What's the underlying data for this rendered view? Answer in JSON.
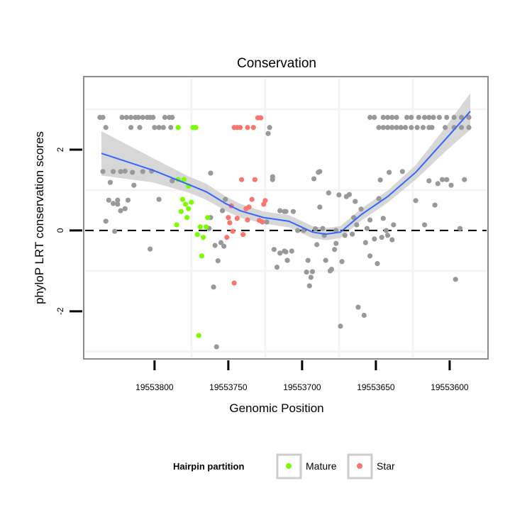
{
  "chart_data": {
    "type": "scatter",
    "title": "Conservation",
    "xlabel": "Genomic Position",
    "ylabel": "phyloP LRT conservation scores",
    "xlim": [
      19553848,
      19553574
    ],
    "x_reversed": true,
    "ylim": [
      -3.18,
      3.81
    ],
    "xticks": [
      19553800,
      19553750,
      19553700,
      19553650,
      19553600
    ],
    "xtick_labels": [
      "19553800",
      "19553750",
      "19553700",
      "19553650",
      "19553600"
    ],
    "yticks": [
      -2,
      0,
      2
    ],
    "ytick_labels": [
      "-2",
      "0",
      "2"
    ],
    "grid_minor_x": [
      19553775,
      19553725,
      19553675,
      19553625
    ],
    "grid_minor_y": [
      -3,
      -1,
      1,
      3
    ],
    "reference_line": {
      "y": 0,
      "style": "dashed"
    },
    "legend": {
      "title": "Hairpin partition",
      "placement": "bottom",
      "entries": [
        {
          "label": "Mature",
          "color": "#7CFC00"
        },
        {
          "label": "Star",
          "color": "#F8766D"
        }
      ]
    },
    "colors": {
      "none": "#999999",
      "mature": "#7CFC00",
      "star": "#F8766D",
      "smooth": "#3366FF",
      "band": "#D3D3D3"
    },
    "series": [
      {
        "name": "none",
        "points": [
          [
            19553837,
            2.8
          ],
          [
            19553835,
            2.8
          ],
          [
            19553822,
            2.8
          ],
          [
            19553819,
            2.8
          ],
          [
            19553816,
            2.8
          ],
          [
            19553813,
            2.8
          ],
          [
            19553811,
            2.8
          ],
          [
            19553808,
            2.8
          ],
          [
            19553805,
            2.8
          ],
          [
            19553803,
            2.8
          ],
          [
            19553801,
            2.8
          ],
          [
            19553793,
            2.8
          ],
          [
            19553790,
            2.8
          ],
          [
            19553788,
            2.8
          ],
          [
            19553654,
            2.8
          ],
          [
            19553651,
            2.8
          ],
          [
            19553645,
            2.8
          ],
          [
            19553642,
            2.8
          ],
          [
            19553639,
            2.8
          ],
          [
            19553636,
            2.8
          ],
          [
            19553629,
            2.8
          ],
          [
            19553626,
            2.8
          ],
          [
            19553621,
            2.8
          ],
          [
            19553617,
            2.8
          ],
          [
            19553614,
            2.8
          ],
          [
            19553611,
            2.8
          ],
          [
            19553607,
            2.8
          ],
          [
            19553602,
            2.8
          ],
          [
            19553597,
            2.8
          ],
          [
            19553592,
            2.8
          ],
          [
            19553587,
            2.8
          ],
          [
            19553833,
            2.55
          ],
          [
            19553816,
            2.55
          ],
          [
            19553810,
            2.55
          ],
          [
            19553800,
            2.55
          ],
          [
            19553797,
            2.55
          ],
          [
            19553794,
            2.55
          ],
          [
            19553789,
            2.55
          ],
          [
            19553722,
            2.55
          ],
          [
            19553723,
            2.4
          ],
          [
            19553648,
            2.55
          ],
          [
            19553645,
            2.55
          ],
          [
            19553642,
            2.55
          ],
          [
            19553639,
            2.55
          ],
          [
            19553636,
            2.55
          ],
          [
            19553633,
            2.55
          ],
          [
            19553630,
            2.55
          ],
          [
            19553626,
            2.55
          ],
          [
            19553622,
            2.55
          ],
          [
            19553618,
            2.55
          ],
          [
            19553614,
            2.55
          ],
          [
            19553612,
            2.55
          ],
          [
            19553603,
            2.55
          ],
          [
            19553597,
            2.55
          ],
          [
            19553592,
            2.55
          ],
          [
            19553587,
            2.55
          ],
          [
            19553835,
            1.46
          ],
          [
            19553828,
            1.46
          ],
          [
            19553823,
            1.46
          ],
          [
            19553820,
            1.47
          ],
          [
            19553815,
            1.44
          ],
          [
            19553808,
            1.46
          ],
          [
            19553802,
            1.47
          ],
          [
            19553830,
            1.19
          ],
          [
            19553814,
            1.12
          ],
          [
            19553762,
            1.42
          ],
          [
            19553788,
            1.23
          ],
          [
            19553831,
            0.75
          ],
          [
            19553828,
            0.67
          ],
          [
            19553825,
            0.75
          ],
          [
            19553825,
            0.65
          ],
          [
            19553818,
            0.75
          ],
          [
            19553823,
            0.49
          ],
          [
            19553820,
            0.54
          ],
          [
            19553833,
            0.23
          ],
          [
            19553827,
            -0.02
          ],
          [
            19553797,
            0.77
          ],
          [
            19553803,
            -0.46
          ],
          [
            19553762,
            0.32
          ],
          [
            19553763,
            0.05
          ],
          [
            19553752,
            0.77
          ],
          [
            19553754,
            0.49
          ],
          [
            19553759,
            -0.37
          ],
          [
            19553755,
            -0.3
          ],
          [
            19553753,
            -0.39
          ],
          [
            19553757,
            -0.75
          ],
          [
            19553760,
            -1.4
          ],
          [
            19553758,
            -2.88
          ],
          [
            19553720,
            1.33
          ],
          [
            19553720,
            1.26
          ],
          [
            19553724,
            0.21
          ],
          [
            19553719,
            -0.47
          ],
          [
            19553715,
            -0.56
          ],
          [
            19553712,
            -0.51
          ],
          [
            19553710,
            -0.74
          ],
          [
            19553717,
            -0.91
          ],
          [
            19553715,
            0.49
          ],
          [
            19553711,
            0.47
          ],
          [
            19553692,
            1.28
          ],
          [
            19553688,
            1.46
          ],
          [
            19553689,
            1.44
          ],
          [
            19553682,
            0.93
          ],
          [
            19553675,
            0.88
          ],
          [
            19553670,
            0.84
          ],
          [
            19553668,
            0.89
          ],
          [
            19553664,
            0.72
          ],
          [
            19553688,
            0.58
          ],
          [
            19553712,
            0.47
          ],
          [
            19553706,
            0.47
          ],
          [
            19553703,
            0.0
          ],
          [
            19553699,
            0.0
          ],
          [
            19553691,
            0.04
          ],
          [
            19553686,
            0.05
          ],
          [
            19553685,
            -0.12
          ],
          [
            19553677,
            0.0
          ],
          [
            19553690,
            -0.35
          ],
          [
            19553677,
            -0.32
          ],
          [
            19553678,
            -0.47
          ],
          [
            19553711,
            -0.53
          ],
          [
            19553707,
            -0.51
          ],
          [
            19553710,
            -0.74
          ],
          [
            19553696,
            -0.74
          ],
          [
            19553684,
            -0.74
          ],
          [
            19553680,
            -0.96
          ],
          [
            19553681,
            -1.0
          ],
          [
            19553673,
            -0.77
          ],
          [
            19553697,
            -1.03
          ],
          [
            19553693,
            -1.02
          ],
          [
            19553694,
            -1.16
          ],
          [
            19553695,
            -1.37
          ],
          [
            19553665,
            0.32
          ],
          [
            19553660,
            0.53
          ],
          [
            19553663,
            0.14
          ],
          [
            19553671,
            -0.12
          ],
          [
            19553666,
            -0.09
          ],
          [
            19553656,
            0.05
          ],
          [
            19553654,
            0.26
          ],
          [
            19553645,
            0.3
          ],
          [
            19553638,
            0.14
          ],
          [
            19553648,
            0.79
          ],
          [
            19553643,
            0.0
          ],
          [
            19553642,
            -0.12
          ],
          [
            19553639,
            -0.23
          ],
          [
            19553651,
            -0.21
          ],
          [
            19553646,
            -0.17
          ],
          [
            19553657,
            -0.3
          ],
          [
            19553654,
            -0.63
          ],
          [
            19553649,
            -0.82
          ],
          [
            19553647,
            1.25
          ],
          [
            19553641,
            1.44
          ],
          [
            19553632,
            1.46
          ],
          [
            19553623,
            0.74
          ],
          [
            19553617,
            0.14
          ],
          [
            19553610,
            0.63
          ],
          [
            19553614,
            1.23
          ],
          [
            19553608,
            1.16
          ],
          [
            19553605,
            1.26
          ],
          [
            19553602,
            1.26
          ],
          [
            19553599,
            1.12
          ],
          [
            19553590,
            1.26
          ],
          [
            19553593,
            0.05
          ],
          [
            19553596,
            -1.21
          ],
          [
            19553662,
            -1.9
          ],
          [
            19553658,
            -2.1
          ],
          [
            19553674,
            -2.37
          ]
        ]
      },
      {
        "name": "Mature",
        "points": [
          [
            19553784,
            2.55
          ],
          [
            19553774,
            2.55
          ],
          [
            19553772,
            2.55
          ],
          [
            19553784,
            1.26
          ],
          [
            19553780,
            1.26
          ],
          [
            19553777,
            1.1
          ],
          [
            19553781,
            0.77
          ],
          [
            19553779,
            0.65
          ],
          [
            19553775,
            0.7
          ],
          [
            19553777,
            0.54
          ],
          [
            19553782,
            0.47
          ],
          [
            19553778,
            0.32
          ],
          [
            19553785,
            0.14
          ],
          [
            19553764,
            0.32
          ],
          [
            19553769,
            0.09
          ],
          [
            19553765,
            0.09
          ],
          [
            19553771,
            -0.1
          ],
          [
            19553767,
            -0.17
          ],
          [
            19553768,
            -0.63
          ],
          [
            19553770,
            -2.6
          ]
        ]
      },
      {
        "name": "Star",
        "points": [
          [
            19553746,
            2.55
          ],
          [
            19553744,
            2.55
          ],
          [
            19553742,
            2.55
          ],
          [
            19553737,
            2.55
          ],
          [
            19553733,
            2.55
          ],
          [
            19553730,
            2.79
          ],
          [
            19553728,
            2.79
          ],
          [
            19553741,
            1.26
          ],
          [
            19553732,
            1.26
          ],
          [
            19553734,
            0.77
          ],
          [
            19553725,
            0.74
          ],
          [
            19553726,
            0.65
          ],
          [
            19553748,
            0.61
          ],
          [
            19553736,
            0.58
          ],
          [
            19553738,
            0.54
          ],
          [
            19553750,
            0.32
          ],
          [
            19553749,
            0.19
          ],
          [
            19553744,
            0.3
          ],
          [
            19553737,
            0.26
          ],
          [
            19553729,
            0.25
          ],
          [
            19553727,
            0.21
          ],
          [
            19553747,
            -0.02
          ],
          [
            19553740,
            -0.1
          ],
          [
            19553751,
            -0.17
          ],
          [
            19553746,
            -1.3
          ]
        ]
      }
    ],
    "smooth": {
      "x": [
        19553836,
        19553801,
        19553777,
        19553765,
        19553752,
        19553742,
        19553726,
        19553709,
        19553693,
        19553684,
        19553674,
        19553660,
        19553642,
        19553623,
        19553603,
        19553586
      ],
      "y": [
        1.91,
        1.49,
        1.14,
        0.96,
        0.67,
        0.49,
        0.32,
        0.23,
        -0.04,
        -0.09,
        -0.04,
        0.39,
        0.84,
        1.44,
        2.25,
        2.95
      ],
      "se": [
        0.55,
        0.3,
        0.2,
        0.2,
        0.18,
        0.17,
        0.15,
        0.15,
        0.15,
        0.15,
        0.15,
        0.15,
        0.15,
        0.18,
        0.3,
        0.45
      ]
    }
  }
}
